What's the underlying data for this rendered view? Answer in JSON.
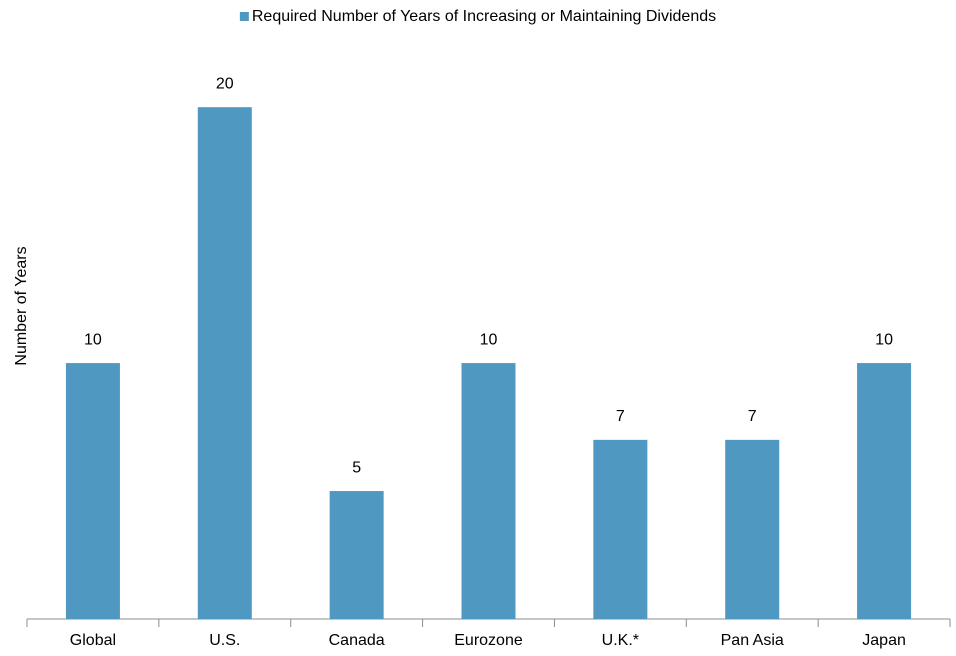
{
  "chart_data": {
    "type": "bar",
    "y_label": "Number of Years",
    "categories": [
      "Global",
      "U.S.",
      "Canada",
      "Eurozone",
      "U.K.*",
      "Pan Asia",
      "Japan"
    ],
    "series": [
      {
        "name": "Required Number of Years of Increasing or Maintaining Dividends",
        "color": "#4f98c2",
        "values": [
          10,
          20,
          5,
          10,
          7,
          7,
          10
        ]
      }
    ],
    "ylim": [
      0,
      22
    ],
    "legend": "top",
    "data_labels": true
  }
}
